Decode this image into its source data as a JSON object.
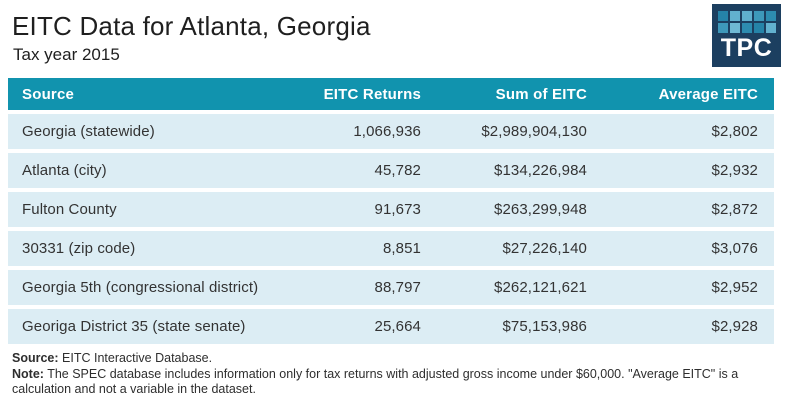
{
  "header": {
    "title": "EITC Data for Atlanta, Georgia",
    "subtitle": "Tax year 2015"
  },
  "logo": {
    "text": "TPC",
    "background": "#1c3f60",
    "squares": [
      "#2583a8",
      "#62b1cf",
      "#5fafce",
      "#3d98ba",
      "#2d8cb0",
      "#3d98ba",
      "#6fb9d4",
      "#2d8cb0",
      "#2583a8",
      "#62b1cf"
    ]
  },
  "table": {
    "header_bg": "#1193ae",
    "row_bg": "#dcedf4",
    "columns": [
      "Source",
      "EITC Returns",
      "Sum of EITC",
      "Average EITC"
    ],
    "rows": [
      {
        "source": "Georgia (statewide)",
        "returns": "1,066,936",
        "sum": "$2,989,904,130",
        "average": "$2,802"
      },
      {
        "source": "Atlanta (city)",
        "returns": "45,782",
        "sum": "$134,226,984",
        "average": "$2,932"
      },
      {
        "source": "Fulton County",
        "returns": "91,673",
        "sum": "$263,299,948",
        "average": "$2,872"
      },
      {
        "source": "30331 (zip code)",
        "returns": "8,851",
        "sum": "$27,226,140",
        "average": "$3,076"
      },
      {
        "source": "Georgia 5th (congressional district)",
        "returns": "88,797",
        "sum": "$262,121,621",
        "average": "$2,952"
      },
      {
        "source": "Georiga District 35 (state senate)",
        "returns": "25,664",
        "sum": "$75,153,986",
        "average": "$2,928"
      }
    ]
  },
  "footer": {
    "source_label": "Source:",
    "source_text": " EITC Interactive Database.",
    "note_label": "Note:",
    "note_text": " The SPEC database includes information only for tax returns with adjusted gross income under $60,000. \"Average EITC\" is a calculation and not a variable in the dataset."
  },
  "chart_data": {
    "type": "table",
    "title": "EITC Data for Atlanta, Georgia",
    "subtitle": "Tax year 2015",
    "columns": [
      "Source",
      "EITC Returns",
      "Sum of EITC",
      "Average EITC"
    ],
    "rows": [
      [
        "Georgia (statewide)",
        1066936,
        2989904130,
        2802
      ],
      [
        "Atlanta (city)",
        45782,
        134226984,
        2932
      ],
      [
        "Fulton County",
        91673,
        263299948,
        2872
      ],
      [
        "30331 (zip code)",
        8851,
        27226140,
        3076
      ],
      [
        "Georgia 5th (congressional district)",
        88797,
        262121621,
        2952
      ],
      [
        "Georiga District 35 (state senate)",
        25664,
        75153986,
        2928
      ]
    ],
    "notes": [
      "Source: EITC Interactive Database.",
      "Note: The SPEC database includes information only for tax returns with adjusted gross income under $60,000. \"Average EITC\" is a calculation and not a variable in the dataset."
    ]
  }
}
